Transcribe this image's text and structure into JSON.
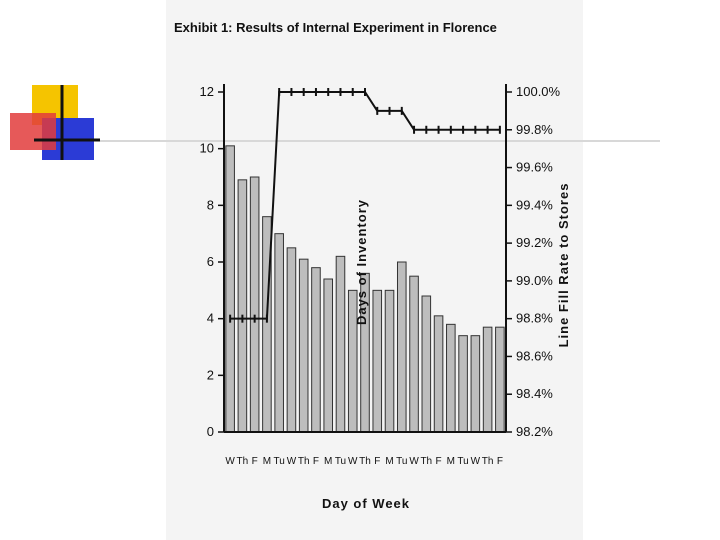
{
  "slide": {
    "accent_colors": [
      "#f5c400",
      "#e23c3c",
      "#2b3bd6",
      "#111111"
    ]
  },
  "chart_data": {
    "type": "bar",
    "title": "Exhibit 1:  Results of Internal Experiment in Florence",
    "xlabel": "Day of Week",
    "ylabel": "Days of Inventory",
    "y2label": "Line Fill Rate to Stores",
    "categories": [
      "W",
      "Th",
      "F",
      "M",
      "Tu",
      "W",
      "Th",
      "F",
      "M",
      "Tu",
      "W",
      "Th",
      "F",
      "M",
      "Tu",
      "W",
      "Th",
      "F",
      "M",
      "Tu",
      "W",
      "Th",
      "F"
    ],
    "ylim": [
      0,
      12
    ],
    "yticks": [
      "0",
      "2",
      "4",
      "6",
      "8",
      "10",
      "12"
    ],
    "y2lim": [
      98.2,
      100.0
    ],
    "y2ticks": [
      "98.2%",
      "98.4%",
      "98.6%",
      "98.8%",
      "99.0%",
      "99.2%",
      "99.4%",
      "99.6%",
      "99.8%",
      "100.0%"
    ],
    "series": [
      {
        "type": "bar",
        "axis": "left",
        "values": [
          10.1,
          8.9,
          9.0,
          7.6,
          7.0,
          6.5,
          6.1,
          5.8,
          5.4,
          6.2,
          5.0,
          5.6,
          5.0,
          5.0,
          6.0,
          5.5,
          4.8,
          4.1,
          3.8,
          3.4,
          3.4,
          3.7,
          3.7
        ]
      },
      {
        "type": "line",
        "axis": "right",
        "values": [
          98.8,
          98.8,
          98.8,
          98.8,
          100.0,
          100.0,
          100.0,
          100.0,
          100.0,
          100.0,
          100.0,
          100.0,
          99.9,
          99.9,
          99.9,
          99.8,
          99.8,
          99.8,
          99.8,
          99.8,
          99.8,
          99.8,
          99.8
        ]
      }
    ],
    "grid": false,
    "legend": "none"
  }
}
